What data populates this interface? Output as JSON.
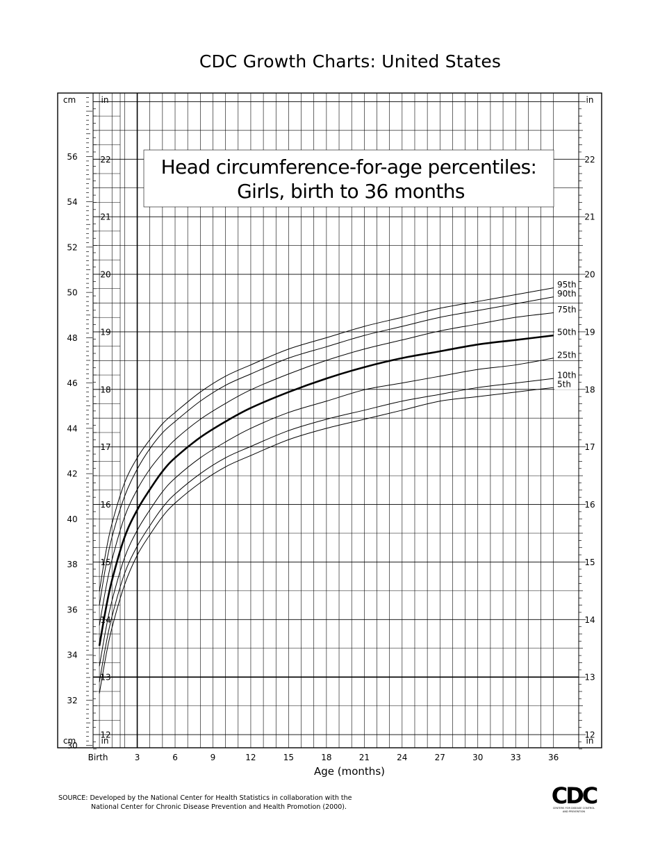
{
  "page_title": "CDC Growth Charts: United States",
  "source": {
    "line1": "SOURCE: Developed by the National Center for Health Statistics in collaboration with the",
    "line2": "National Center for Chronic Disease Prevention and Health Promotion (2000)."
  },
  "logo": {
    "text": "CDC",
    "subtext_line1": "CENTERS FOR DISEASE CONTROL",
    "subtext_line2": "AND PREVENTION"
  },
  "chart_data": {
    "type": "line",
    "title_line1": "Head circumference-for-age percentiles:",
    "title_line2": "Girls, birth to 36 months",
    "xlabel": "Age (months)",
    "xlim": [
      -0.5,
      38
    ],
    "x_ticks": [
      0,
      3,
      6,
      9,
      12,
      15,
      18,
      21,
      24,
      27,
      30,
      33,
      36
    ],
    "x_tick_labels": [
      "Birth",
      "3",
      "6",
      "9",
      "12",
      "15",
      "18",
      "21",
      "24",
      "27",
      "30",
      "33",
      "36"
    ],
    "y_left_unit": "cm",
    "y_right_unit": "in",
    "ylim_cm": [
      29.9,
      58.8
    ],
    "cm_ticks": [
      30,
      32,
      34,
      36,
      38,
      40,
      42,
      44,
      46,
      48,
      50,
      52,
      54,
      56
    ],
    "in_ticks": [
      12,
      13,
      14,
      15,
      16,
      17,
      18,
      19,
      20,
      21,
      22
    ],
    "x": [
      0,
      0.5,
      1,
      2,
      3,
      4,
      5,
      6,
      8,
      10,
      12,
      15,
      18,
      21,
      24,
      27,
      30,
      33,
      36
    ],
    "series": [
      {
        "name": "95th",
        "values": [
          36.8,
          38.5,
          39.8,
          41.6,
          42.7,
          43.5,
          44.2,
          44.7,
          45.6,
          46.3,
          46.8,
          47.5,
          48.0,
          48.5,
          48.9,
          49.3,
          49.6,
          49.9,
          50.2
        ]
      },
      {
        "name": "90th",
        "values": [
          36.2,
          37.9,
          39.2,
          41.0,
          42.2,
          43.1,
          43.8,
          44.3,
          45.2,
          45.9,
          46.4,
          47.1,
          47.6,
          48.1,
          48.5,
          48.9,
          49.2,
          49.5,
          49.8
        ]
      },
      {
        "name": "75th",
        "values": [
          35.3,
          36.9,
          38.2,
          40.1,
          41.3,
          42.2,
          42.9,
          43.5,
          44.4,
          45.1,
          45.7,
          46.4,
          47.0,
          47.5,
          47.9,
          48.3,
          48.6,
          48.9,
          49.1
        ]
      },
      {
        "name": "50th",
        "values": [
          34.4,
          36.0,
          37.3,
          39.2,
          40.4,
          41.3,
          42.1,
          42.7,
          43.6,
          44.3,
          44.9,
          45.6,
          46.2,
          46.7,
          47.1,
          47.4,
          47.7,
          47.9,
          48.1
        ]
      },
      {
        "name": "25th",
        "values": [
          33.5,
          35.1,
          36.4,
          38.3,
          39.5,
          40.4,
          41.2,
          41.8,
          42.7,
          43.4,
          44.0,
          44.7,
          45.2,
          45.7,
          46.0,
          46.3,
          46.6,
          46.8,
          47.1
        ]
      },
      {
        "name": "10th",
        "values": [
          32.8,
          34.4,
          35.7,
          37.6,
          38.8,
          39.7,
          40.5,
          41.1,
          42.0,
          42.7,
          43.2,
          43.9,
          44.4,
          44.8,
          45.2,
          45.5,
          45.8,
          46.0,
          46.2
        ]
      },
      {
        "name": "5th",
        "values": [
          32.3,
          33.9,
          35.2,
          37.1,
          38.4,
          39.3,
          40.1,
          40.7,
          41.6,
          42.3,
          42.8,
          43.5,
          44.0,
          44.4,
          44.8,
          45.2,
          45.4,
          45.6,
          45.8
        ]
      }
    ],
    "emphasized_series": "50th",
    "grid": true
  }
}
